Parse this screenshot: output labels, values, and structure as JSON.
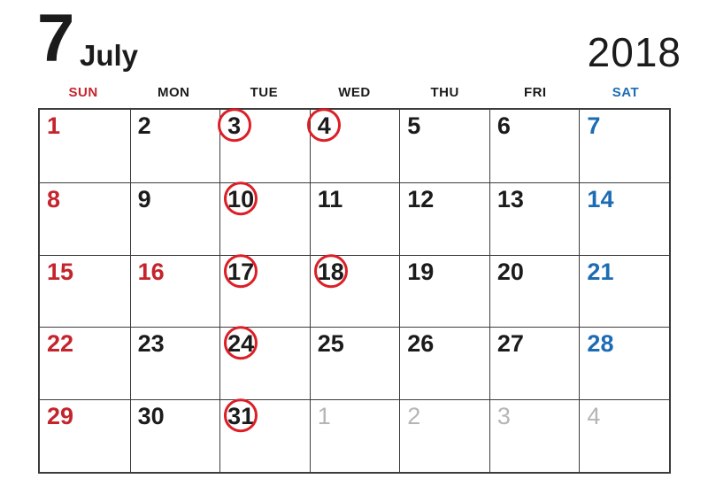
{
  "header": {
    "month_number": "7",
    "month_name": "July",
    "year": "2018"
  },
  "weekday_header": [
    {
      "label": "SUN",
      "color": "red"
    },
    {
      "label": "MON",
      "color": "black"
    },
    {
      "label": "TUE",
      "color": "black"
    },
    {
      "label": "WED",
      "color": "black"
    },
    {
      "label": "THU",
      "color": "black"
    },
    {
      "label": "FRI",
      "color": "black"
    },
    {
      "label": "SAT",
      "color": "blue"
    }
  ],
  "calendar": {
    "circled_dates_note": "red-circle-marked",
    "weeks": [
      [
        {
          "day": "1",
          "color": "red",
          "circled": false
        },
        {
          "day": "2",
          "color": "black",
          "circled": false
        },
        {
          "day": "3",
          "color": "black",
          "circled": true
        },
        {
          "day": "4",
          "color": "black",
          "circled": true
        },
        {
          "day": "5",
          "color": "black",
          "circled": false
        },
        {
          "day": "6",
          "color": "black",
          "circled": false
        },
        {
          "day": "7",
          "color": "blue",
          "circled": false
        }
      ],
      [
        {
          "day": "8",
          "color": "red",
          "circled": false
        },
        {
          "day": "9",
          "color": "black",
          "circled": false
        },
        {
          "day": "10",
          "color": "black",
          "circled": true
        },
        {
          "day": "11",
          "color": "black",
          "circled": false
        },
        {
          "day": "12",
          "color": "black",
          "circled": false
        },
        {
          "day": "13",
          "color": "black",
          "circled": false
        },
        {
          "day": "14",
          "color": "blue",
          "circled": false
        }
      ],
      [
        {
          "day": "15",
          "color": "red",
          "circled": false
        },
        {
          "day": "16",
          "color": "red",
          "circled": false
        },
        {
          "day": "17",
          "color": "black",
          "circled": true
        },
        {
          "day": "18",
          "color": "black",
          "circled": true
        },
        {
          "day": "19",
          "color": "black",
          "circled": false
        },
        {
          "day": "20",
          "color": "black",
          "circled": false
        },
        {
          "day": "21",
          "color": "blue",
          "circled": false
        }
      ],
      [
        {
          "day": "22",
          "color": "red",
          "circled": false
        },
        {
          "day": "23",
          "color": "black",
          "circled": false
        },
        {
          "day": "24",
          "color": "black",
          "circled": true
        },
        {
          "day": "25",
          "color": "black",
          "circled": false
        },
        {
          "day": "26",
          "color": "black",
          "circled": false
        },
        {
          "day": "27",
          "color": "black",
          "circled": false
        },
        {
          "day": "28",
          "color": "blue",
          "circled": false
        }
      ],
      [
        {
          "day": "29",
          "color": "red",
          "circled": false
        },
        {
          "day": "30",
          "color": "black",
          "circled": false
        },
        {
          "day": "31",
          "color": "black",
          "circled": true
        },
        {
          "day": "1",
          "color": "gray",
          "circled": false
        },
        {
          "day": "2",
          "color": "gray",
          "circled": false
        },
        {
          "day": "3",
          "color": "gray",
          "circled": false
        },
        {
          "day": "4",
          "color": "gray",
          "circled": false
        }
      ]
    ]
  },
  "colors": {
    "ink": "#1b1b1b",
    "red": "#c5242c",
    "blue": "#1c6cb3",
    "gray": "#b5b5b6",
    "circle_red": "#dc1f27",
    "grid_line": "#3c3c3c"
  }
}
